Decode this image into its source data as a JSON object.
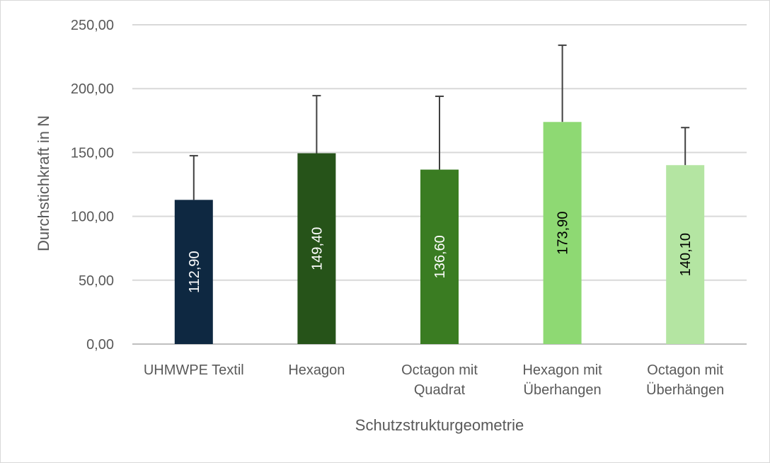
{
  "chart_data": {
    "type": "bar",
    "title": "",
    "xlabel": "Schutzstrukturgeometrie",
    "ylabel": "Durchstichkraft in N",
    "ylim": [
      0,
      250
    ],
    "yticks": [
      0,
      50,
      100,
      150,
      200,
      250
    ],
    "ytick_labels": [
      "0,00",
      "50,00",
      "100,00",
      "150,00",
      "200,00",
      "250,00"
    ],
    "grid": true,
    "legend": "none",
    "categories": [
      [
        "UHMWPE Textil"
      ],
      [
        "Hexagon"
      ],
      [
        "Octagon mit",
        "Quadrat"
      ],
      [
        "Hexagon mit",
        "Überhangen"
      ],
      [
        "Octagon mit",
        "Überhängen"
      ]
    ],
    "values": [
      112.9,
      149.4,
      136.6,
      173.9,
      140.1
    ],
    "data_labels": [
      "112,90",
      "149,40",
      "136,60",
      "173,90",
      "140,10"
    ],
    "error_upper": [
      147.5,
      194.5,
      194.0,
      234.0,
      169.5
    ],
    "colors": [
      "#0e2841",
      "#265319",
      "#3a7c22",
      "#8ed973",
      "#b4e5a2"
    ],
    "label_colors": [
      "#ffffff",
      "#ffffff",
      "#ffffff",
      "#000000",
      "#000000"
    ]
  }
}
